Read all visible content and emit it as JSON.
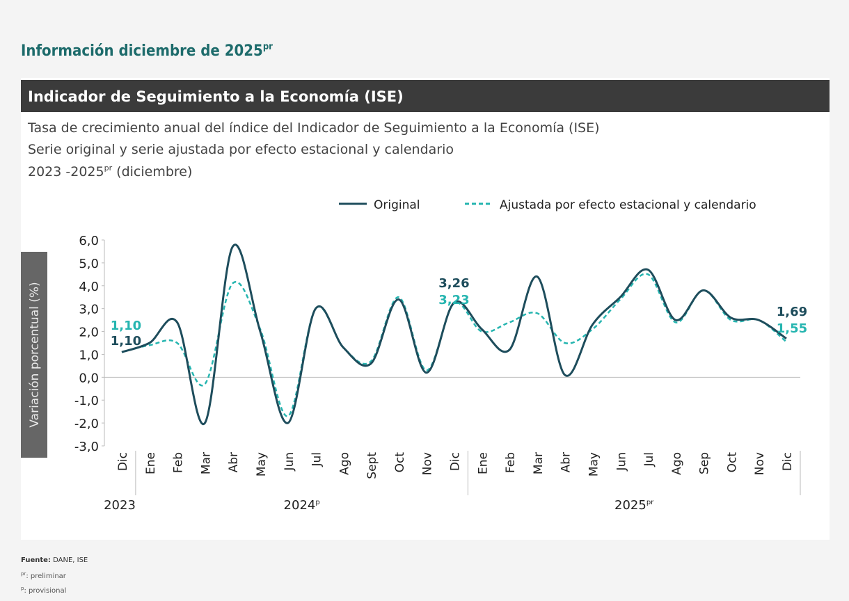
{
  "header": {
    "title": "Información diciembre de 2025",
    "title_sup": "pr"
  },
  "chart_data": {
    "type": "line",
    "panel_title": "Indicador de Seguimiento a la Economía (ISE)",
    "title": "Tasa de crecimiento anual del índice del Indicador de Seguimiento a la Economía (ISE)",
    "subtitle": "Serie original y serie ajustada por efecto estacional y calendario",
    "period": "2023 -2025",
    "period_sup": "pr",
    "period_tail": " (diciembre)",
    "ylabel": "Variación porcentual (%)",
    "categories": [
      "Dic",
      "Ene",
      "Feb",
      "Mar",
      "Abr",
      "May",
      "Jun",
      "Jul",
      "Ago",
      "Sept",
      "Oct",
      "Nov",
      "Dic",
      "Ene",
      "Feb",
      "Mar",
      "Abr",
      "May",
      "Jun",
      "Jul",
      "Ago",
      "Sep",
      "Oct",
      "Nov",
      "Dic"
    ],
    "years": [
      {
        "text": "2023",
        "sup": null,
        "start": 0,
        "end": 0
      },
      {
        "text": "2024",
        "sup": "p",
        "start": 1,
        "end": 12
      },
      {
        "text": "2025",
        "sup": "pr",
        "start": 13,
        "end": 24
      }
    ],
    "series": [
      {
        "name": "Original",
        "color": "#1e4d5c",
        "dash": false,
        "values": [
          1.1,
          1.5,
          2.4,
          -2.0,
          5.7,
          2.0,
          -2.0,
          3.0,
          1.3,
          0.6,
          3.4,
          0.2,
          3.26,
          2.1,
          1.2,
          4.4,
          0.1,
          2.3,
          3.5,
          4.7,
          2.5,
          3.8,
          2.6,
          2.5,
          1.69
        ],
        "value_labels": [
          "1,10",
          null,
          null,
          null,
          null,
          null,
          null,
          null,
          null,
          null,
          null,
          null,
          "3,26",
          null,
          null,
          null,
          null,
          null,
          null,
          null,
          null,
          null,
          null,
          null,
          "1,69"
        ]
      },
      {
        "name": "Ajustada por efecto estacional y calendario",
        "color": "#26b5b0",
        "dash": true,
        "values": [
          1.1,
          1.4,
          1.5,
          -0.3,
          4.1,
          2.1,
          -1.7,
          3.0,
          1.3,
          0.7,
          3.5,
          0.3,
          3.23,
          2.0,
          2.4,
          2.8,
          1.5,
          2.1,
          3.4,
          4.5,
          2.4,
          3.8,
          2.5,
          2.5,
          1.55
        ],
        "value_labels": [
          "1,10",
          null,
          null,
          null,
          null,
          null,
          null,
          null,
          null,
          null,
          null,
          null,
          "3,23",
          null,
          null,
          null,
          null,
          null,
          null,
          null,
          null,
          null,
          null,
          null,
          "1,55"
        ]
      }
    ],
    "ylim": [
      -3,
      6
    ],
    "yticks": [
      {
        "value": -3,
        "label": "-3,0"
      },
      {
        "value": -2,
        "label": "-2,0"
      },
      {
        "value": -1,
        "label": "-1,0"
      },
      {
        "value": 0,
        "label": "0,0"
      },
      {
        "value": 1,
        "label": "1,0"
      },
      {
        "value": 2,
        "label": "2,0"
      },
      {
        "value": 3,
        "label": "3,0"
      },
      {
        "value": 4,
        "label": "4,0"
      },
      {
        "value": 5,
        "label": "5,0"
      },
      {
        "value": 6,
        "label": "6,0"
      }
    ],
    "legend": "top-right"
  },
  "footer": {
    "source_label": "Fuente:",
    "source": " DANE, ISE",
    "notes": [
      {
        "sup": "pr",
        "text": ": preliminar"
      },
      {
        "sup": "p",
        "text": ": provisional"
      }
    ]
  }
}
